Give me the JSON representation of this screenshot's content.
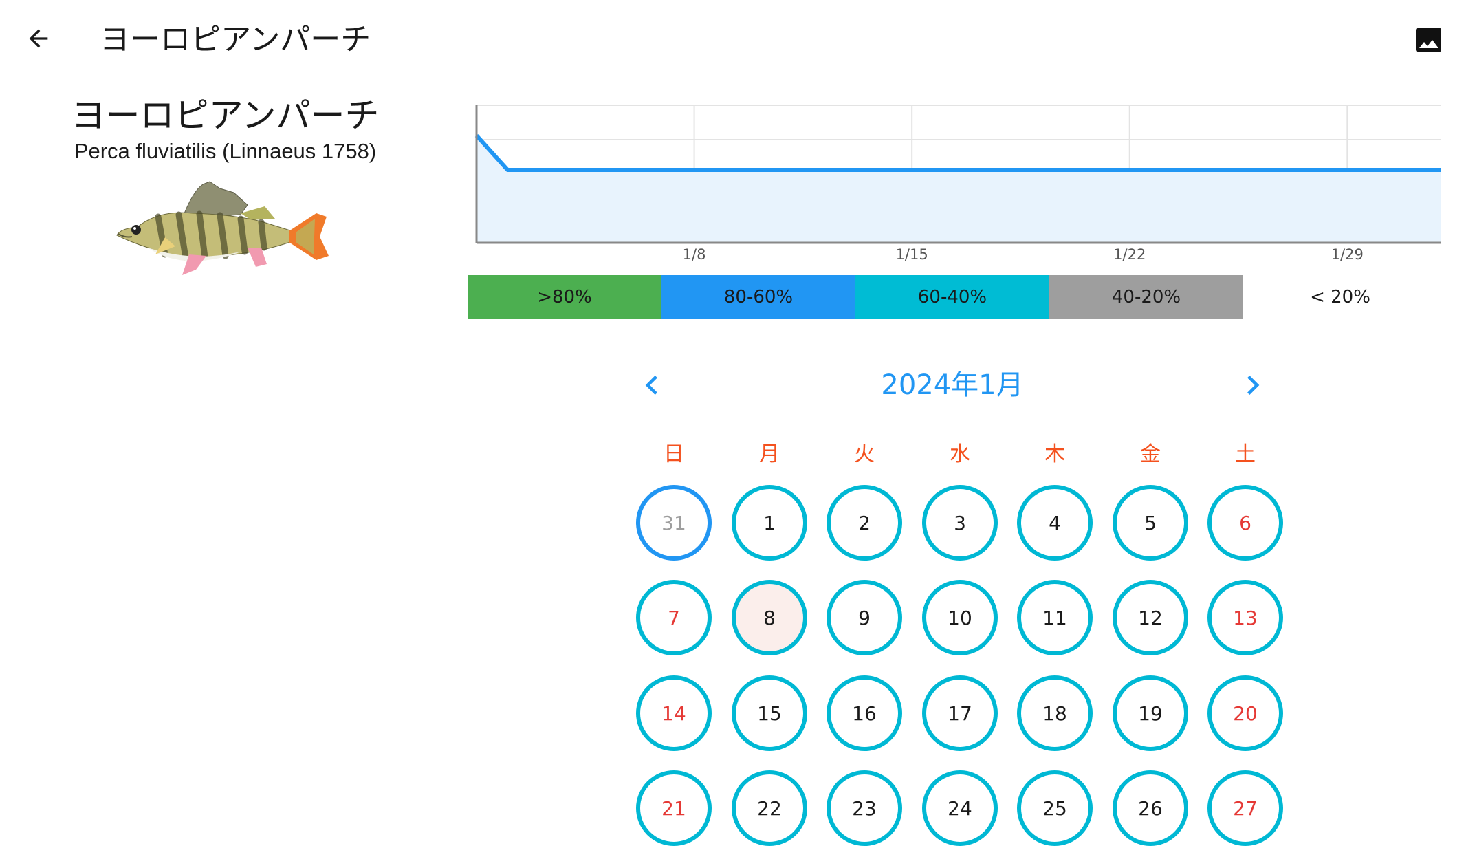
{
  "appbar": {
    "title": "ヨーロピアンパーチ"
  },
  "species": {
    "name": "ヨーロピアンパーチ",
    "scientific_name": "Perca fluviatilis (Linnaeus 1758)"
  },
  "chart_data": {
    "type": "area",
    "x_ticks": [
      "1/8",
      "1/15",
      "1/22",
      "1/29"
    ],
    "x_range": [
      "2024-01-01",
      "2024-02-01"
    ],
    "points": [
      [
        "2024-01-01",
        78
      ],
      [
        "2024-01-02",
        53
      ],
      [
        "2024-02-01",
        53
      ]
    ],
    "ylim": [
      0,
      100
    ],
    "grid": true,
    "color": "#2196f3"
  },
  "legend": [
    {
      "label": ">80%",
      "color": "#4caf50"
    },
    {
      "label": "80-60%",
      "color": "#2196f3"
    },
    {
      "label": "60-40%",
      "color": "#00bcd4"
    },
    {
      "label": "40-20%",
      "color": "#9e9e9e"
    },
    {
      "label": "< 20%",
      "color": "#ffffff"
    }
  ],
  "calendar": {
    "title": "2024年1月",
    "weekdays": [
      "日",
      "月",
      "火",
      "水",
      "木",
      "金",
      "土"
    ],
    "weeks": [
      [
        "31",
        "1",
        "2",
        "3",
        "4",
        "5",
        "6"
      ],
      [
        "7",
        "8",
        "9",
        "10",
        "11",
        "12",
        "13"
      ],
      [
        "14",
        "15",
        "16",
        "17",
        "18",
        "19",
        "20"
      ],
      [
        "21",
        "22",
        "23",
        "24",
        "25",
        "26",
        "27"
      ]
    ],
    "out_of_month": [
      "31"
    ],
    "highlighted": [
      "8"
    ]
  },
  "icons": {
    "back": "arrow-back-icon",
    "image": "image-icon",
    "prev": "chevron-left-icon",
    "next": "chevron-right-icon"
  }
}
